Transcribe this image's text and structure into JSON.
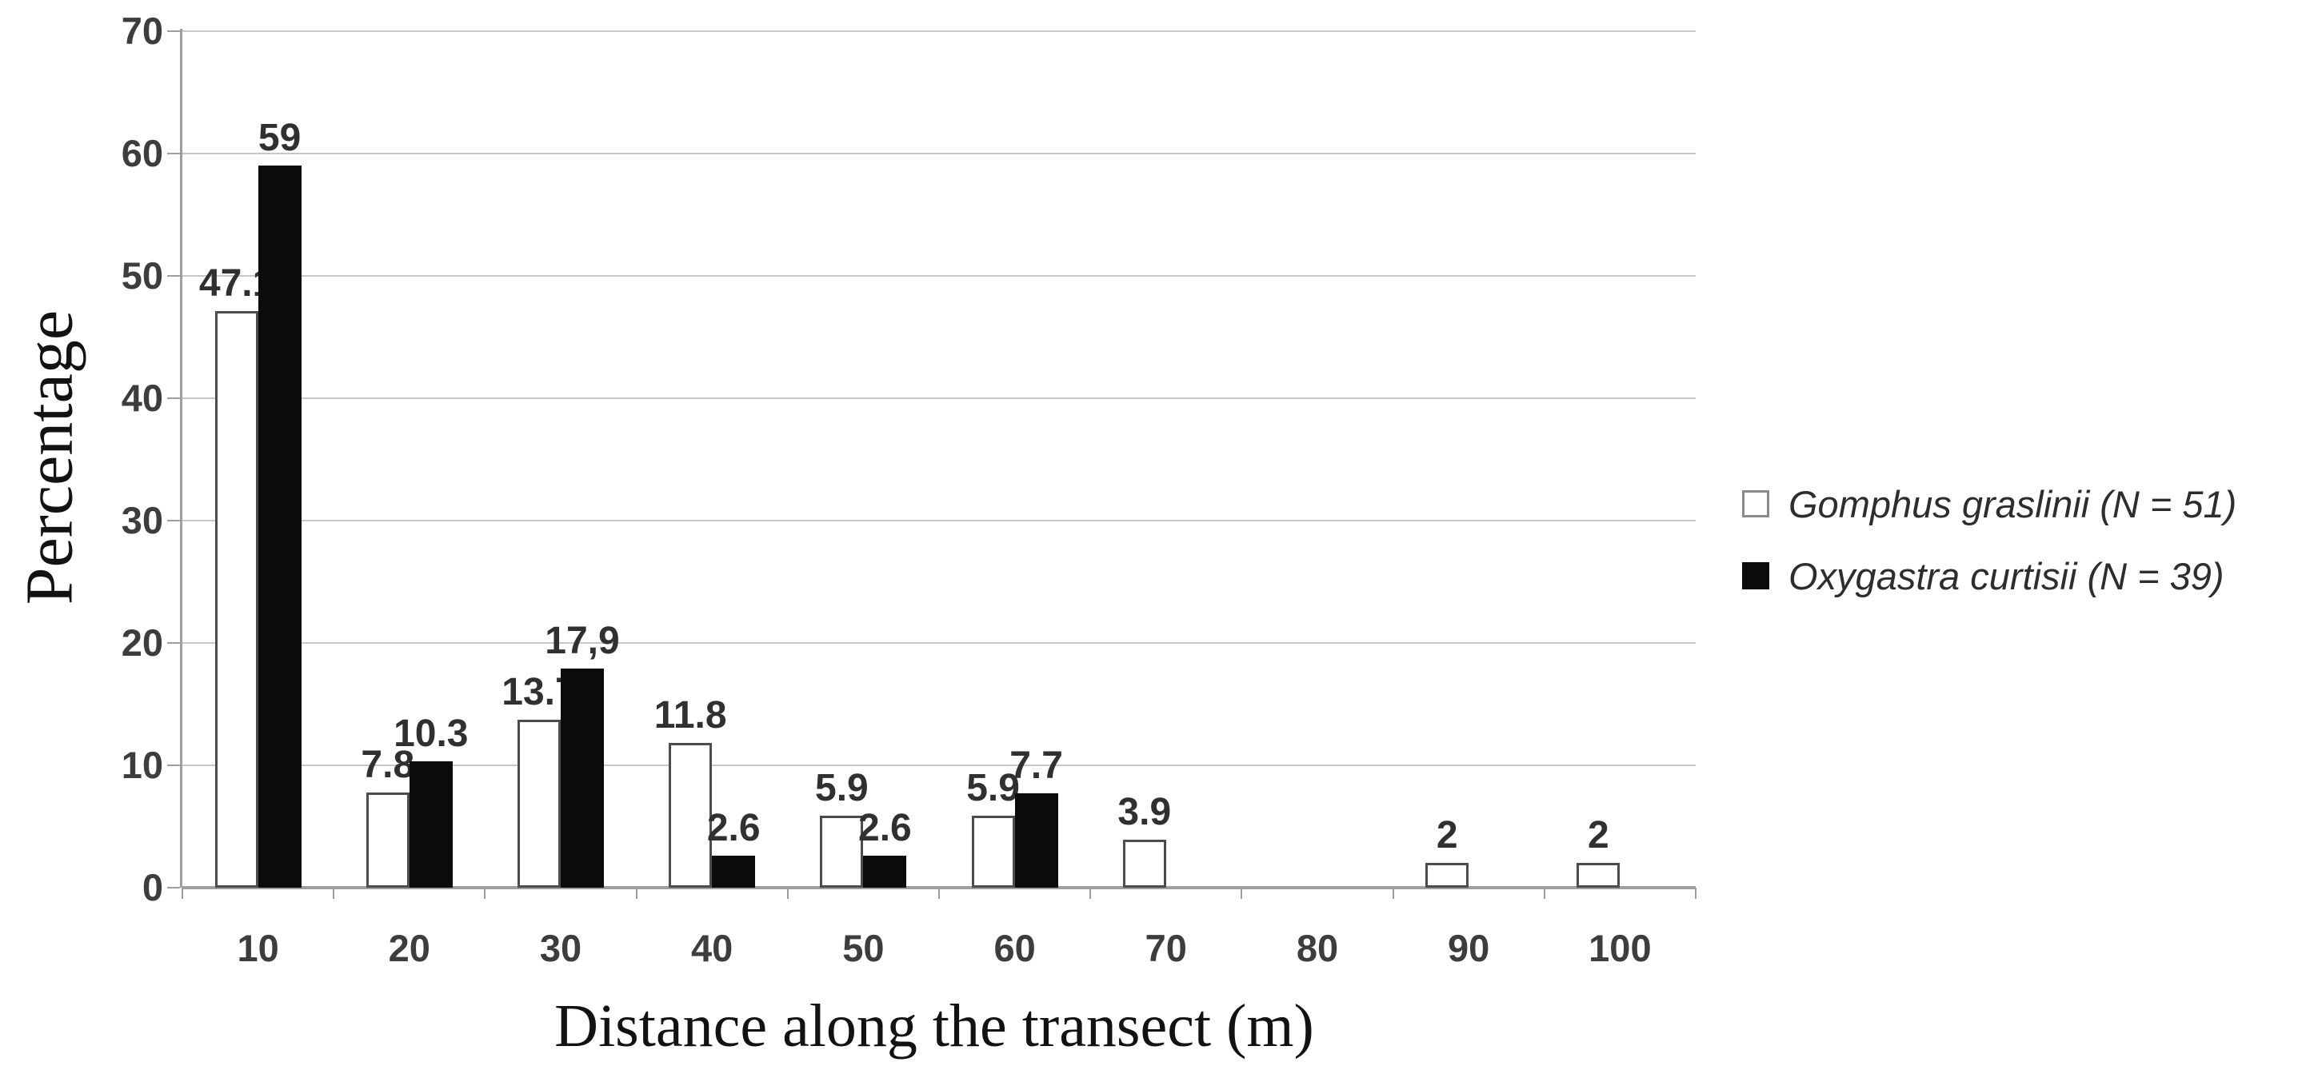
{
  "colors": {
    "background": "#ffffff",
    "gridline": "#c7c7c7",
    "axis": "#9e9e9e",
    "bar_outline": "#4c4c4c",
    "series_white_fill": "#ffffff",
    "series_black_fill": "#0b0b0b",
    "data_label_text": "#303030",
    "tick_label_text": "#3d3d3d",
    "axis_title_text": "#121212",
    "legend_text": "#2d2d2d",
    "legend_swatch_border": "#8a8a8a"
  },
  "axes": {
    "y_title": "Percentage",
    "x_title": "Distance along the transect (m)"
  },
  "legend": {
    "items": [
      {
        "label": "Gomphus graslinii (N = 51)",
        "swatch": "open-square"
      },
      {
        "label": "Oxygastra curtisii (N = 39)",
        "swatch": "filled-square"
      }
    ]
  },
  "chart_data": {
    "type": "bar",
    "title": "",
    "xlabel": "Distance along the transect (m)",
    "ylabel": "Percentage",
    "categories": [
      "10",
      "20",
      "30",
      "40",
      "50",
      "60",
      "70",
      "80",
      "90",
      "100"
    ],
    "series": [
      {
        "name": "Gomphus graslinii (N = 51)",
        "style": "white-outlined",
        "values": [
          47.1,
          7.8,
          13.7,
          11.8,
          5.9,
          5.9,
          3.9,
          0,
          2,
          2
        ],
        "labels": [
          "47.1",
          "7.8",
          "13.7",
          "11.8",
          "5.9",
          "5.9",
          "3.9",
          "",
          "2",
          "2"
        ]
      },
      {
        "name": "Oxygastra curtisii (N = 39)",
        "style": "black-filled",
        "values": [
          59,
          10.3,
          17.9,
          2.6,
          2.6,
          7.7,
          0,
          0,
          0,
          0
        ],
        "labels": [
          "59",
          "10.3",
          "17,9",
          "2.6",
          "2.6",
          "7.7",
          "",
          "",
          "",
          ""
        ]
      }
    ],
    "ylim": [
      0,
      70
    ],
    "y_ticks": [
      0,
      10,
      20,
      30,
      40,
      50,
      60,
      70
    ],
    "grid": true,
    "legend_position": "right-middle"
  }
}
